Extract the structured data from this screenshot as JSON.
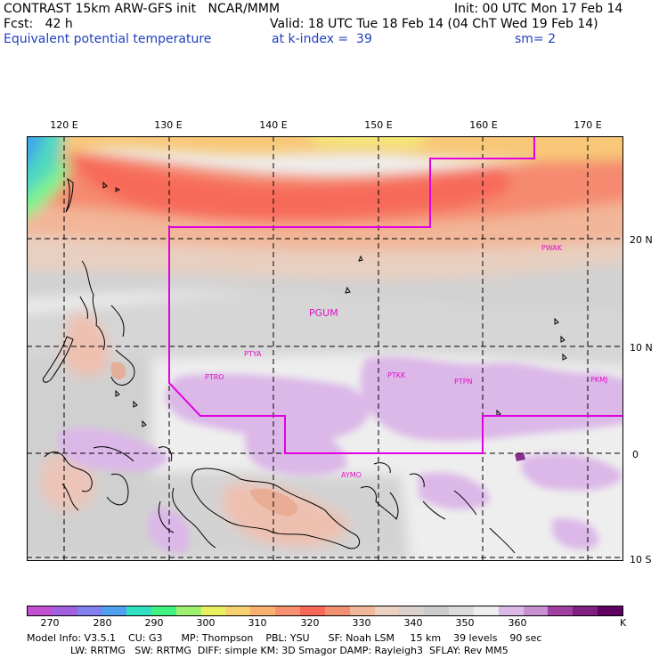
{
  "header": {
    "title": "CONTRAST 15km ARW-GFS init   NCAR/MMM",
    "init": "Init: 00 UTC Mon 17 Feb 14",
    "fcst": "Fcst:   42 h",
    "valid": "Valid: 18 UTC Tue 18 Feb 14 (04 ChT Wed 19 Feb 14)",
    "field": "Equivalent potential temperature",
    "level": "at k-index =  39",
    "smooth": "sm= 2"
  },
  "axes": {
    "lon_labels": [
      "120 E",
      "130 E",
      "140 E",
      "150 E",
      "160 E",
      "170 E"
    ],
    "lat_labels": [
      "20 N",
      "10 N",
      "0",
      "10 S"
    ]
  },
  "stations": [
    "PWAK",
    "PGUM",
    "PTYA",
    "PTRO",
    "PTKK",
    "PTPN",
    "PKMJ",
    "AYMO"
  ],
  "legend": {
    "ticks": [
      "270",
      "280",
      "290",
      "300",
      "310",
      "320",
      "330",
      "340",
      "350",
      "360"
    ],
    "unit": "K",
    "colors": [
      "#c050d0",
      "#a060e0",
      "#8080f0",
      "#50a0f0",
      "#30e0c0",
      "#40f080",
      "#a0f070",
      "#e8f060",
      "#f8d070",
      "#f8b070",
      "#f89070",
      "#f86858",
      "#f09070",
      "#f0b898",
      "#ecd0c0",
      "#dcd0cc",
      "#cccccc",
      "#dcdcdc",
      "#eeeeee",
      "#dcb8e8",
      "#c890d0",
      "#a040a0",
      "#802080",
      "#600060"
    ]
  },
  "footer": {
    "line1": "Model Info: V3.5.1    CU: G3      MP: Thompson    PBL: YSU      SF: Noah LSM     15 km    39 levels    90 sec",
    "line2": "              LW: RRTMG   SW: RRTMG  DIFF: simple KM: 3D Smagor DAMP: Rayleigh3  SFLAY: Rev MM5"
  }
}
